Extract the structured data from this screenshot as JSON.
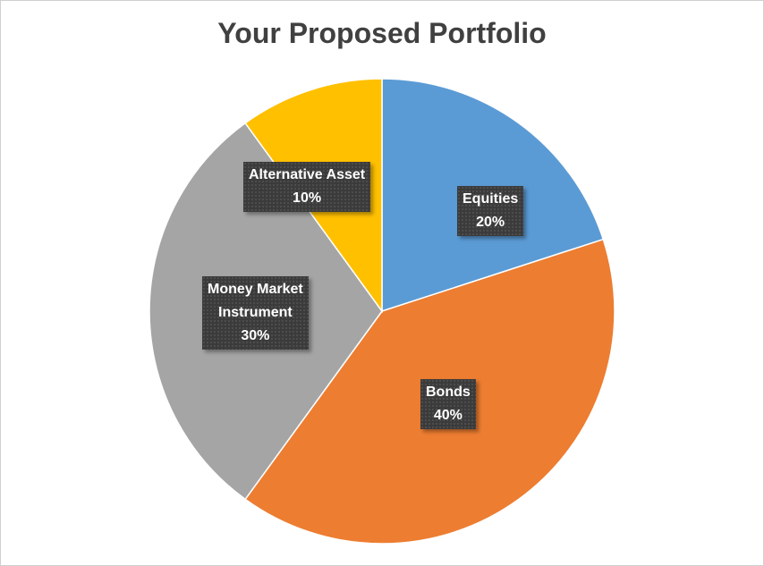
{
  "chart_data": {
    "type": "pie",
    "title": "Your Proposed Portfolio",
    "slices": [
      {
        "name": "Equities",
        "value": 20,
        "label_value": "20%",
        "color": "#5B9BD5"
      },
      {
        "name": "Bonds",
        "value": 40,
        "label_value": "40%",
        "color": "#ED7D31"
      },
      {
        "name": "Money Market Instrument",
        "label_lines": [
          "Money Market",
          "Instrument"
        ],
        "value": 30,
        "label_value": "30%",
        "color": "#A5A5A5"
      },
      {
        "name": "Alternative Asset",
        "value": 10,
        "label_value": "10%",
        "color": "#FFC000"
      }
    ],
    "start_angle_deg": 0,
    "direction": "clockwise",
    "legend": "none",
    "data_labels": "category name and percentage"
  }
}
